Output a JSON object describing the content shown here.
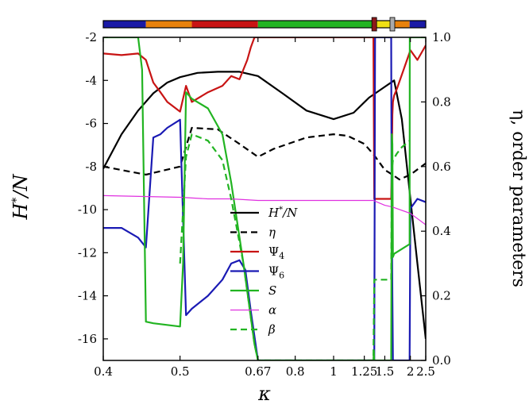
{
  "chart_data": {
    "type": "line",
    "xlabel": "κ",
    "ylabel_left": "H*/N",
    "ylabel_right": "η, order parameters",
    "x_ticks": [
      {
        "value": 0.4,
        "label": "0.4"
      },
      {
        "value": 0.5,
        "label": "0.5"
      },
      {
        "value": 0.67,
        "label": "0.67"
      },
      {
        "value": 0.8,
        "label": "0.8"
      },
      {
        "value": 1.0,
        "label": "1"
      },
      {
        "value": 1.25,
        "label": "1.25"
      },
      {
        "value": 1.5,
        "label": "1.5"
      },
      {
        "value": 2.0,
        "label": "2"
      },
      {
        "value": 2.5,
        "label": "2.5"
      }
    ],
    "x_scale": "reciprocal",
    "xlim": [
      0.4,
      2.5
    ],
    "ylim_left": [
      -17,
      -2
    ],
    "y_ticks_left": [
      -2,
      -4,
      -6,
      -8,
      -10,
      -12,
      -14,
      -16
    ],
    "ylim_right": [
      0,
      1
    ],
    "y_ticks_right": [
      "0.0",
      "0.2",
      "0.4",
      "0.6",
      "0.8",
      "1.0"
    ],
    "grid": false,
    "legend_position": "center",
    "phase_bar": [
      {
        "from": 0.4,
        "to": 0.45,
        "color": "#1a1aa6"
      },
      {
        "from": 0.45,
        "to": 0.52,
        "color": "#e8820c"
      },
      {
        "from": 0.52,
        "to": 0.67,
        "color": "#c81414"
      },
      {
        "from": 0.67,
        "to": 1.35,
        "color": "#22b422"
      },
      {
        "from": 1.35,
        "to": 1.63,
        "color": "#f0e014"
      },
      {
        "from": 1.63,
        "to": 1.98,
        "color": "#e8820c"
      },
      {
        "from": 1.98,
        "to": 2.5,
        "color": "#1a1aa6"
      }
    ],
    "phase_markers": [
      {
        "x": 1.36,
        "color": "#8b1a1a"
      },
      {
        "x": 1.62,
        "color": "#aaaaaa"
      }
    ],
    "series": [
      {
        "name": "H*/N",
        "axis": "left",
        "color": "#000000",
        "dash": "solid",
        "x": [
          0.4,
          0.42,
          0.44,
          0.46,
          0.48,
          0.5,
          0.53,
          0.57,
          0.62,
          0.67,
          0.75,
          0.85,
          1.0,
          1.15,
          1.3,
          1.5,
          1.65,
          1.8,
          2.0,
          2.2,
          2.5
        ],
        "y": [
          -8.1,
          -6.5,
          -5.4,
          -4.6,
          -4.1,
          -3.85,
          -3.65,
          -3.6,
          -3.6,
          -3.8,
          -4.6,
          -5.4,
          -5.8,
          -5.5,
          -4.8,
          -4.3,
          -4.0,
          -5.8,
          -9.5,
          -12.5,
          -16.0
        ]
      },
      {
        "name": "η",
        "axis": "right",
        "color": "#000000",
        "dash": "dashed",
        "x": [
          0.4,
          0.45,
          0.5,
          0.52,
          0.57,
          0.62,
          0.67,
          0.72,
          0.85,
          1.0,
          1.1,
          1.25,
          1.36,
          1.5,
          1.62,
          1.75,
          2.0,
          2.5
        ],
        "y": [
          0.6,
          0.575,
          0.6,
          0.72,
          0.715,
          0.67,
          0.63,
          0.655,
          0.69,
          0.7,
          0.695,
          0.67,
          0.635,
          0.59,
          0.575,
          0.56,
          0.575,
          0.61
        ]
      },
      {
        "name": "Ψ4",
        "axis": "right",
        "color": "#c81414",
        "dash": "solid",
        "x": [
          0.4,
          0.42,
          0.44,
          0.45,
          0.46,
          0.47,
          0.48,
          0.5,
          0.51,
          0.52,
          0.55,
          0.58,
          0.6,
          0.62,
          0.64,
          0.65,
          0.66,
          0.67,
          1.0,
          1.35,
          1.36,
          1.37,
          1.6,
          1.61,
          1.62,
          1.63,
          1.65,
          1.7,
          2.0,
          2.2,
          2.5
        ],
        "y": [
          0.95,
          0.945,
          0.95,
          0.93,
          0.86,
          0.83,
          0.8,
          0.77,
          0.85,
          0.8,
          0.83,
          0.85,
          0.88,
          0.87,
          0.93,
          0.97,
          1.0,
          1.0,
          1.0,
          1.0,
          0.5,
          0.5,
          0.5,
          0.6,
          0.76,
          0.8,
          0.82,
          0.84,
          0.96,
          0.93,
          0.975
        ]
      },
      {
        "name": "Ψ6",
        "axis": "right",
        "color": "#1a1ab4",
        "dash": "solid",
        "x": [
          0.4,
          0.42,
          0.44,
          0.45,
          0.46,
          0.47,
          0.48,
          0.5,
          0.51,
          0.52,
          0.55,
          0.58,
          0.6,
          0.62,
          0.635,
          0.65,
          0.67,
          1.35,
          1.36,
          1.37,
          1.6,
          1.61,
          1.615,
          1.62,
          1.63,
          1.98,
          2.0,
          2.2,
          2.5
        ],
        "y": [
          0.41,
          0.41,
          0.38,
          0.35,
          0.69,
          0.7,
          0.72,
          0.745,
          0.14,
          0.16,
          0.2,
          0.25,
          0.3,
          0.31,
          0.28,
          0.15,
          0.0,
          0.0,
          0.0,
          1.0,
          1.0,
          0.2,
          0.34,
          0.2,
          0.0,
          0.0,
          0.47,
          0.5,
          0.49
        ]
      },
      {
        "name": "S",
        "axis": "right",
        "color": "#22b422",
        "dash": "solid",
        "x": [
          0.4,
          0.44,
          0.445,
          0.45,
          0.46,
          0.5,
          0.505,
          0.51,
          0.52,
          0.55,
          0.58,
          0.6,
          0.63,
          0.66,
          0.67,
          1.35,
          1.355,
          1.36,
          1.365,
          1.37,
          1.6,
          1.61,
          1.62,
          1.63,
          1.65,
          1.98,
          1.985,
          2.0,
          2.5
        ],
        "y": [
          1.0,
          1.0,
          0.9,
          0.12,
          0.115,
          0.105,
          0.3,
          0.83,
          0.81,
          0.78,
          0.7,
          0.55,
          0.3,
          0.05,
          0.0,
          0.0,
          0.03,
          0.0,
          0.0,
          0.0,
          0.0,
          0.7,
          0.67,
          0.32,
          0.33,
          0.36,
          1.0,
          1.0,
          1.0
        ]
      },
      {
        "name": "α",
        "axis": "right",
        "color": "#e030e0",
        "dash": "solid",
        "x": [
          0.4,
          0.5,
          0.55,
          0.6,
          0.67,
          0.8,
          1.0,
          1.35,
          1.5,
          1.62,
          2.0,
          2.5
        ],
        "y": [
          0.51,
          0.505,
          0.5,
          0.5,
          0.495,
          0.495,
          0.495,
          0.495,
          0.48,
          0.475,
          0.455,
          0.42
        ]
      },
      {
        "name": "β",
        "axis": "right",
        "color": "#22b422",
        "dash": "dashed",
        "x": [
          0.5,
          0.51,
          0.52,
          0.55,
          0.58,
          0.6,
          0.63,
          0.66,
          0.67,
          1.35,
          1.36,
          1.37,
          1.6,
          1.61,
          1.63,
          1.7,
          1.8,
          1.98
        ],
        "y": [
          0.3,
          0.63,
          0.7,
          0.68,
          0.62,
          0.5,
          0.3,
          0.05,
          0.0,
          0.0,
          0.25,
          0.25,
          0.25,
          0.59,
          0.62,
          0.64,
          0.66,
          0.68
        ]
      }
    ]
  }
}
